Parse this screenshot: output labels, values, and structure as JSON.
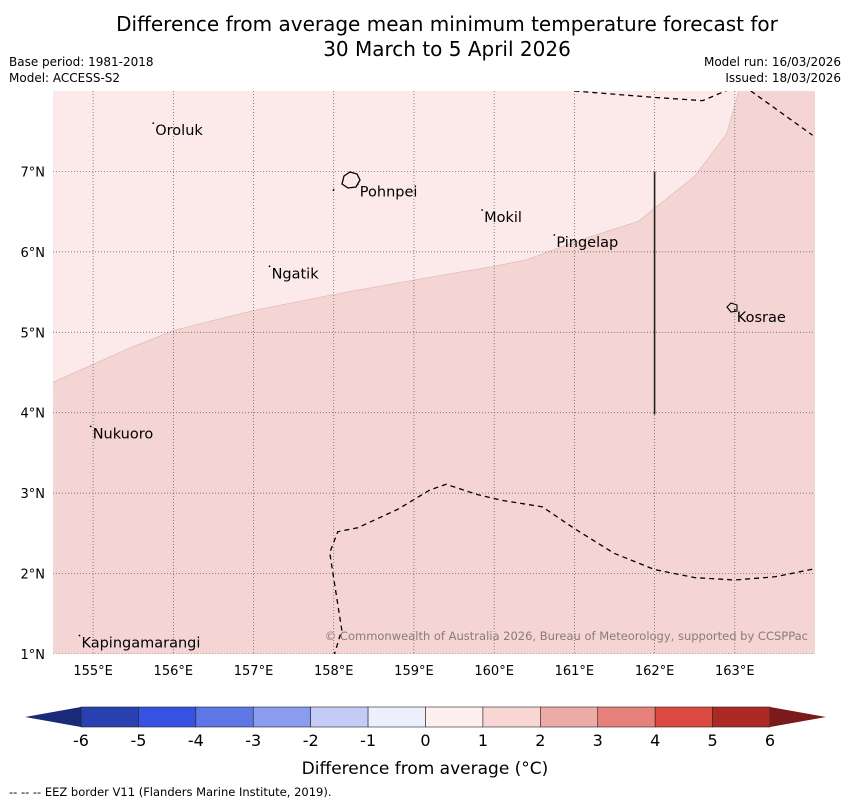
{
  "title": {
    "line1": "Difference from average mean minimum temperature forecast for",
    "line2": "30 March to 5 April 2026"
  },
  "meta": {
    "base_period": "Base period: 1981-2018",
    "model": "Model: ACCESS-S2",
    "model_run": "Model run: 16/03/2026",
    "issued": "Issued: 18/03/2026"
  },
  "map": {
    "lon_range": [
      154.5,
      164.0
    ],
    "lat_range": [
      1.0,
      8.0
    ],
    "lon_ticks": [
      155,
      156,
      157,
      158,
      159,
      160,
      161,
      162,
      163
    ],
    "lat_ticks": [
      1,
      2,
      3,
      4,
      5,
      6,
      7
    ],
    "lon_tick_labels": [
      "155°E",
      "156°E",
      "157°E",
      "158°E",
      "159°E",
      "160°E",
      "161°E",
      "162°E",
      "163°E"
    ],
    "lat_tick_labels": [
      "1°N",
      "2°N",
      "3°N",
      "4°N",
      "5°N",
      "6°N",
      "7°N"
    ],
    "fill_colors": {
      "zero_to_one": "#fbeae9",
      "one_to_two": "#f5d5d3"
    },
    "zone_boundary": [
      [
        154.5,
        4.38
      ],
      [
        155.0,
        4.6
      ],
      [
        155.4,
        4.78
      ],
      [
        156.0,
        5.02
      ],
      [
        156.3,
        5.1
      ],
      [
        157.0,
        5.27
      ],
      [
        158.0,
        5.47
      ],
      [
        159.0,
        5.65
      ],
      [
        160.0,
        5.82
      ],
      [
        160.4,
        5.9
      ],
      [
        161.0,
        6.12
      ],
      [
        161.3,
        6.22
      ],
      [
        161.8,
        6.38
      ],
      [
        162.5,
        6.94
      ],
      [
        162.9,
        7.47
      ],
      [
        163.05,
        8.0
      ]
    ],
    "places": [
      {
        "name": "Oroluk",
        "lon": 155.75,
        "lat": 7.6
      },
      {
        "name": "Pohnpei",
        "lon": 158.3,
        "lat": 6.84
      },
      {
        "name": "Mokil",
        "lon": 159.85,
        "lat": 6.52
      },
      {
        "name": "Pingelap",
        "lon": 160.75,
        "lat": 6.21
      },
      {
        "name": "Ngatik",
        "lon": 157.2,
        "lat": 5.82
      },
      {
        "name": "Kosrae",
        "lon": 163.0,
        "lat": 5.28
      },
      {
        "name": "Nukuoro",
        "lon": 154.97,
        "lat": 3.83
      },
      {
        "name": "Kapingamarangi",
        "lon": 154.83,
        "lat": 1.23
      }
    ],
    "eez_line_north": [
      [
        161.0,
        8.0
      ],
      [
        162.0,
        7.92
      ],
      [
        162.6,
        7.88
      ],
      [
        163.0,
        8.05
      ],
      [
        163.2,
        8.0
      ],
      [
        163.97,
        7.45
      ]
    ],
    "eez_line_south": [
      [
        158.0,
        0.97
      ],
      [
        158.1,
        1.3
      ],
      [
        157.95,
        2.26
      ],
      [
        158.05,
        2.52
      ],
      [
        158.3,
        2.57
      ],
      [
        158.8,
        2.8
      ],
      [
        159.2,
        3.04
      ],
      [
        159.4,
        3.11
      ],
      [
        159.8,
        2.98
      ],
      [
        160.1,
        2.91
      ],
      [
        160.6,
        2.83
      ],
      [
        161.0,
        2.56
      ],
      [
        161.5,
        2.25
      ],
      [
        162.0,
        2.05
      ],
      [
        162.5,
        1.95
      ],
      [
        163.0,
        1.92
      ],
      [
        163.5,
        1.96
      ],
      [
        164.0,
        2.06
      ]
    ],
    "boundary_line": [
      [
        162.0,
        7.0
      ],
      [
        162.0,
        3.98
      ]
    ],
    "copyright": "© Commonwealth of Australia 2026, Bureau of Meteorology, supported by CCSPPac"
  },
  "colorbar": {
    "label": "Difference from average (°C)",
    "tick_labels": [
      "-6",
      "-5",
      "-4",
      "-3",
      "-2",
      "-1",
      "0",
      "1",
      "2",
      "3",
      "4",
      "5",
      "6"
    ],
    "low_extend_color": "#1a2a78",
    "high_extend_color": "#7a1a1a",
    "segment_colors": [
      "#2941b0",
      "#3553e0",
      "#5f77e6",
      "#8a9cee",
      "#c4cbf7",
      "#eeeffd",
      "#fdf0ee",
      "#f7d6d3",
      "#eeaaa6",
      "#e7817c",
      "#dc4940",
      "#ab2a26"
    ]
  },
  "footer": "--  --  -- EEZ border V11 (Flanders Marine Institute, 2019)."
}
